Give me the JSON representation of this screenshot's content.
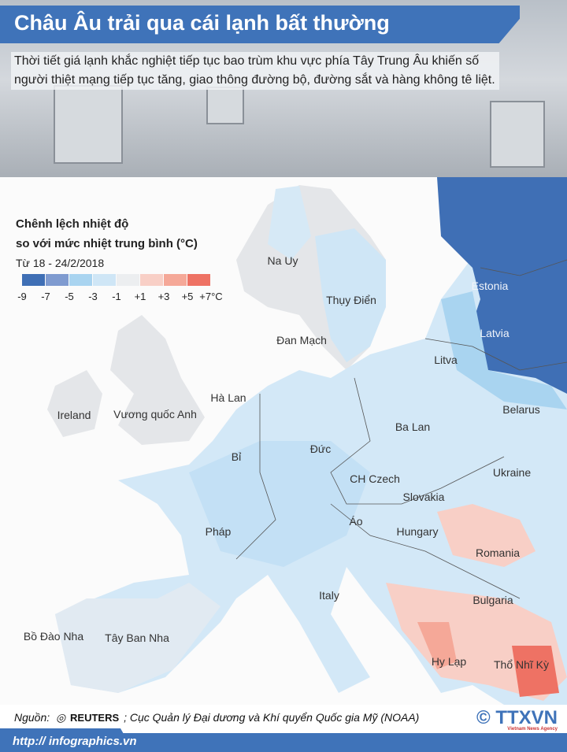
{
  "header": {
    "title": "Châu Âu trải qua cái lạnh bất thường",
    "description": "Thời tiết giá lạnh khắc nghiệt tiếp tục bao trùm khu vực phía Tây Trung Âu khiến số người thiệt mạng tiếp tục tăng, giao thông đường bộ, đường sắt và hàng không tê liệt."
  },
  "legend": {
    "title_line1": "Chênh lệch nhiệt độ",
    "title_line2": "so với mức nhiệt trung bình (°C)",
    "period": "Từ 18 - 24/2/2018",
    "colors": [
      "#3f6fb5",
      "#7f9bd0",
      "#a9d4f0",
      "#cfe6f6",
      "#eceef0",
      "#f8cfc6",
      "#f5a898",
      "#ee7264"
    ],
    "ticks": [
      "-9",
      "-7",
      "-5",
      "-3",
      "-1",
      "+1",
      "+3",
      "+5",
      "+7°C"
    ]
  },
  "countries": [
    {
      "name": "Na Uy"
    },
    {
      "name": "Thụy Điển"
    },
    {
      "name": "Đan Mạch"
    },
    {
      "name": "Estonia"
    },
    {
      "name": "Latvia"
    },
    {
      "name": "Litva"
    },
    {
      "name": "Belarus"
    },
    {
      "name": "Hà Lan"
    },
    {
      "name": "Ireland"
    },
    {
      "name": "Vương quốc Anh"
    },
    {
      "name": "Ba Lan"
    },
    {
      "name": "Bỉ"
    },
    {
      "name": "Đức"
    },
    {
      "name": "CH Czech"
    },
    {
      "name": "Ukraine"
    },
    {
      "name": "Slovakia"
    },
    {
      "name": "Áo"
    },
    {
      "name": "Pháp"
    },
    {
      "name": "Hungary"
    },
    {
      "name": "Romania"
    },
    {
      "name": "Italy"
    },
    {
      "name": "Bulgaria"
    },
    {
      "name": "Bồ Đào Nha"
    },
    {
      "name": "Tây Ban Nha"
    },
    {
      "name": "Hy Lạp"
    },
    {
      "name": "Thổ Nhĩ Kỳ"
    }
  ],
  "footer": {
    "source_label": "Nguồn:",
    "source_reuters": "REUTERS",
    "source_rest": "; Cục Quản lý Đại dương và Khí quyển Quốc gia Mỹ (NOAA)",
    "url": "http:// infographics.vn",
    "logo": "TTXVN",
    "logo_sub": "Vietnam News Agency",
    "copyright": "©"
  }
}
